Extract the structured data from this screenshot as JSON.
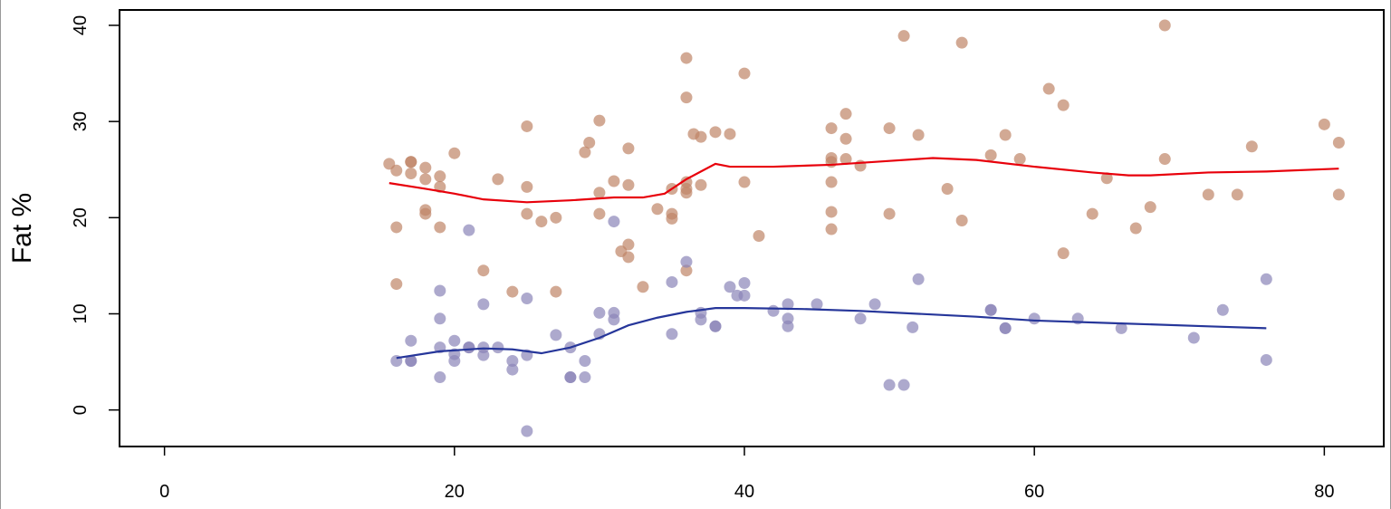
{
  "chart_data": {
    "type": "scatter",
    "title": "",
    "xlabel": "",
    "ylabel": "Fat %",
    "xlim": [
      -3.1,
      84.1
    ],
    "ylim": [
      -3.8,
      41.6
    ],
    "xticks": [
      0,
      20,
      40,
      60,
      80
    ],
    "yticks": [
      0,
      10,
      20,
      30,
      40
    ],
    "grid": false,
    "colors": {
      "series_a_points": "#bf8466",
      "series_b_points": "#8a84b8",
      "series_a_line": "#e8000b",
      "series_b_line": "#26369a"
    },
    "series": [
      {
        "points": [
          [
            15.5,
            25.6
          ],
          [
            16,
            24.9
          ],
          [
            16,
            19.0
          ],
          [
            16,
            13.1
          ],
          [
            17,
            25.8
          ],
          [
            17,
            25.8
          ],
          [
            17,
            24.6
          ],
          [
            18,
            25.2
          ],
          [
            18,
            24.0
          ],
          [
            18,
            20.8
          ],
          [
            18,
            20.4
          ],
          [
            19,
            24.3
          ],
          [
            19,
            23.2
          ],
          [
            19,
            19.0
          ],
          [
            20,
            26.7
          ],
          [
            22,
            14.5
          ],
          [
            23,
            24.0
          ],
          [
            24,
            12.3
          ],
          [
            25,
            29.5
          ],
          [
            25,
            23.2
          ],
          [
            25,
            20.4
          ],
          [
            26,
            19.6
          ],
          [
            27,
            20.0
          ],
          [
            27,
            12.3
          ],
          [
            29,
            26.8
          ],
          [
            29.3,
            27.8
          ],
          [
            30,
            30.1
          ],
          [
            30,
            22.6
          ],
          [
            30,
            20.4
          ],
          [
            31,
            23.8
          ],
          [
            31.5,
            16.5
          ],
          [
            32,
            27.2
          ],
          [
            32,
            23.4
          ],
          [
            32,
            17.2
          ],
          [
            32,
            15.9
          ],
          [
            33,
            12.8
          ],
          [
            34,
            20.9
          ],
          [
            35,
            23.0
          ],
          [
            35,
            20.4
          ],
          [
            35,
            19.9
          ],
          [
            36,
            36.6
          ],
          [
            36,
            32.5
          ],
          [
            36,
            23.7
          ],
          [
            36,
            23.0
          ],
          [
            36,
            22.6
          ],
          [
            36,
            14.5
          ],
          [
            36.5,
            28.7
          ],
          [
            37,
            28.4
          ],
          [
            37,
            23.4
          ],
          [
            38,
            28.9
          ],
          [
            39,
            28.7
          ],
          [
            40,
            35.0
          ],
          [
            40,
            23.7
          ],
          [
            41,
            18.1
          ],
          [
            46,
            29.3
          ],
          [
            46,
            26.2
          ],
          [
            46,
            25.8
          ],
          [
            46,
            23.7
          ],
          [
            46,
            20.6
          ],
          [
            46,
            18.8
          ],
          [
            47,
            30.8
          ],
          [
            47,
            28.2
          ],
          [
            47,
            26.1
          ],
          [
            48,
            25.4
          ],
          [
            50,
            29.3
          ],
          [
            50,
            20.4
          ],
          [
            51,
            38.9
          ],
          [
            52,
            28.6
          ],
          [
            54,
            23.0
          ],
          [
            55,
            38.2
          ],
          [
            55,
            19.7
          ],
          [
            57,
            26.5
          ],
          [
            58,
            28.6
          ],
          [
            59,
            26.1
          ],
          [
            61,
            33.4
          ],
          [
            62,
            31.7
          ],
          [
            62,
            16.3
          ],
          [
            64,
            20.4
          ],
          [
            65,
            24.1
          ],
          [
            67,
            18.9
          ],
          [
            68,
            21.1
          ],
          [
            69,
            40.0
          ],
          [
            69,
            26.1
          ],
          [
            72,
            22.4
          ],
          [
            74,
            22.4
          ],
          [
            75,
            27.4
          ],
          [
            80,
            29.7
          ],
          [
            81,
            27.8
          ],
          [
            81,
            22.4
          ]
        ],
        "smooth": [
          [
            15.5,
            23.6
          ],
          [
            18,
            23.0
          ],
          [
            20,
            22.5
          ],
          [
            22,
            21.9
          ],
          [
            25,
            21.6
          ],
          [
            28,
            21.8
          ],
          [
            31,
            22.1
          ],
          [
            33,
            22.1
          ],
          [
            34.5,
            22.5
          ],
          [
            36,
            24.0
          ],
          [
            37,
            24.8
          ],
          [
            38,
            25.6
          ],
          [
            39,
            25.3
          ],
          [
            42,
            25.3
          ],
          [
            46,
            25.5
          ],
          [
            50,
            25.9
          ],
          [
            53,
            26.2
          ],
          [
            56,
            26.0
          ],
          [
            60,
            25.3
          ],
          [
            64,
            24.7
          ],
          [
            66.5,
            24.4
          ],
          [
            68,
            24.4
          ],
          [
            72,
            24.7
          ],
          [
            76,
            24.8
          ],
          [
            81,
            25.1
          ]
        ]
      },
      {
        "points": [
          [
            16,
            5.1
          ],
          [
            17,
            7.2
          ],
          [
            17,
            5.1
          ],
          [
            17,
            5.1
          ],
          [
            19,
            12.4
          ],
          [
            19,
            9.5
          ],
          [
            19,
            6.5
          ],
          [
            19,
            3.4
          ],
          [
            20,
            7.2
          ],
          [
            20,
            5.8
          ],
          [
            20,
            5.1
          ],
          [
            21,
            18.7
          ],
          [
            21,
            6.5
          ],
          [
            21,
            6.5
          ],
          [
            22,
            11.0
          ],
          [
            22,
            6.5
          ],
          [
            22,
            5.7
          ],
          [
            23,
            6.5
          ],
          [
            24,
            5.1
          ],
          [
            24,
            4.2
          ],
          [
            25,
            11.6
          ],
          [
            25,
            5.7
          ],
          [
            25,
            -2.2
          ],
          [
            27,
            7.8
          ],
          [
            28,
            6.5
          ],
          [
            28,
            3.4
          ],
          [
            28,
            3.4
          ],
          [
            29,
            5.1
          ],
          [
            29,
            3.4
          ],
          [
            30,
            10.1
          ],
          [
            30,
            7.9
          ],
          [
            31,
            19.6
          ],
          [
            31,
            10.1
          ],
          [
            31,
            9.4
          ],
          [
            35,
            13.3
          ],
          [
            35,
            7.9
          ],
          [
            36,
            15.4
          ],
          [
            37,
            10.1
          ],
          [
            37,
            9.4
          ],
          [
            38,
            8.7
          ],
          [
            38,
            8.7
          ],
          [
            39,
            12.8
          ],
          [
            39.5,
            11.9
          ],
          [
            40,
            13.2
          ],
          [
            40,
            11.9
          ],
          [
            42,
            10.3
          ],
          [
            43,
            11.0
          ],
          [
            43,
            9.5
          ],
          [
            43,
            8.7
          ],
          [
            45,
            11.0
          ],
          [
            48,
            9.5
          ],
          [
            49,
            11.0
          ],
          [
            50,
            2.6
          ],
          [
            51,
            2.6
          ],
          [
            51.6,
            8.6
          ],
          [
            52,
            13.6
          ],
          [
            57,
            10.4
          ],
          [
            57,
            10.4
          ],
          [
            58,
            8.5
          ],
          [
            58,
            8.5
          ],
          [
            60,
            9.5
          ],
          [
            63,
            9.5
          ],
          [
            66,
            8.5
          ],
          [
            71,
            7.5
          ],
          [
            73,
            10.4
          ],
          [
            76,
            13.6
          ],
          [
            76,
            5.2
          ]
        ],
        "smooth": [
          [
            16,
            5.4
          ],
          [
            19,
            6.1
          ],
          [
            22,
            6.4
          ],
          [
            24,
            6.3
          ],
          [
            26,
            5.9
          ],
          [
            28,
            6.5
          ],
          [
            30,
            7.5
          ],
          [
            32,
            8.8
          ],
          [
            34,
            9.6
          ],
          [
            36,
            10.2
          ],
          [
            38,
            10.6
          ],
          [
            40,
            10.6
          ],
          [
            44,
            10.5
          ],
          [
            48,
            10.3
          ],
          [
            52,
            10.0
          ],
          [
            56,
            9.7
          ],
          [
            60,
            9.3
          ],
          [
            66,
            9.0
          ],
          [
            72,
            8.7
          ],
          [
            76,
            8.5
          ]
        ]
      }
    ]
  }
}
